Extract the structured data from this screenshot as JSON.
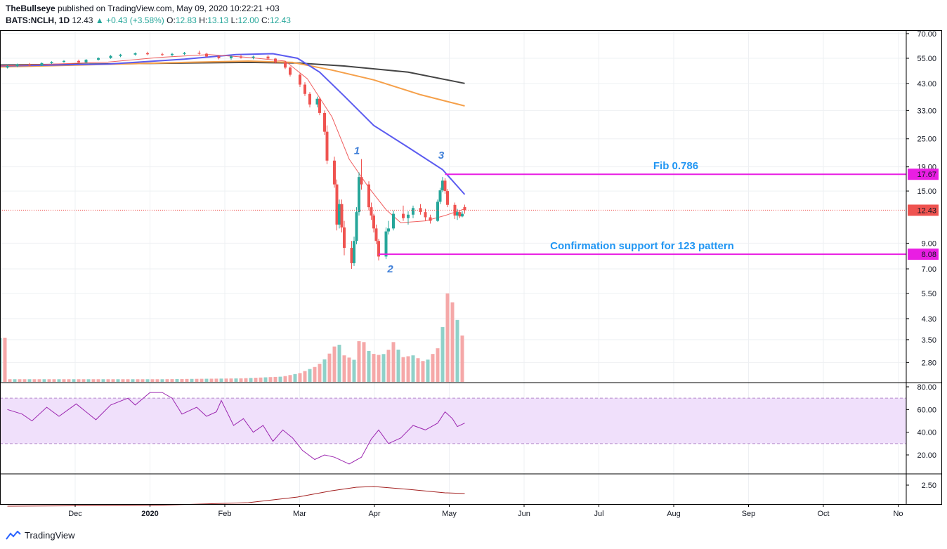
{
  "header": {
    "author": "TheBullseye",
    "published": "published on TradingView.com, May 09, 2020 10:22:21 +03",
    "symbol": "BATS:NCLH, 1D",
    "last": "12.43",
    "change": "+0.43 (+3.58%)",
    "o_label": "O:",
    "o": "12.83",
    "h_label": "H:",
    "h": "13.13",
    "l_label": "L:",
    "l": "12.00",
    "c_label": "C:",
    "c": "12.43"
  },
  "footer": {
    "brand": "TradingView",
    "logo_icon": "tradingview-logo-icon"
  },
  "chart_data": {
    "type": "candlestick",
    "price_scale": "log",
    "x_ticks": [
      "Dec",
      "2020",
      "Feb",
      "Mar",
      "Apr",
      "May",
      "Jun",
      "Jul",
      "Aug",
      "Sep",
      "Oct",
      "No"
    ],
    "price_ticks": [
      "70.00",
      "55.00",
      "43.00",
      "33.00",
      "25.00",
      "19.00",
      "15.00",
      "12.43",
      "9.00",
      "7.00",
      "5.50",
      "4.30",
      "3.50",
      "2.80"
    ],
    "rsi_ticks": [
      "80.00",
      "60.00",
      "40.00",
      "20.00"
    ],
    "rsi_band": [
      30,
      70
    ],
    "third_ticks": [
      "2.50"
    ],
    "last_price": 12.43,
    "price_labels": [
      {
        "text": "17.67",
        "value": 17.67,
        "color": "#e91ee3"
      },
      {
        "text": "12.43",
        "value": 12.43,
        "color": "#ef5350"
      },
      {
        "text": "8.08",
        "value": 8.08,
        "color": "#e91ee3"
      }
    ],
    "hlines": [
      {
        "value": 17.67,
        "from_date": "2020-04-30",
        "color": "#e91ee3",
        "label": "Fib 0.786"
      },
      {
        "value": 8.08,
        "from_date": "2020-04-03",
        "color": "#e91ee3",
        "label": "Confirmation support for 123 pattern"
      }
    ],
    "pattern_points": [
      {
        "label": "1",
        "date": "2020-03-26",
        "value": 20.5
      },
      {
        "label": "2",
        "date": "2020-04-06",
        "value": 7.6
      },
      {
        "label": "3",
        "date": "2020-04-29",
        "value": 19.6
      }
    ],
    "colors": {
      "up": "#26a69a",
      "down": "#ef5350",
      "ma_fast": "#f06060",
      "ma_mid": "#5b5bf0",
      "ma_slow": "#f5a04a",
      "ma_long": "#444444",
      "rsi": "#9c27b0",
      "rsi_band": "#f0e0fb",
      "third": "#a32020",
      "hline": "#e91ee3",
      "annotation": "#2196f3"
    },
    "moving_averages": [
      {
        "key": "ma_long",
        "points": [
          [
            "2019-11-01",
            51.5
          ],
          [
            "2020-01-15",
            52.5
          ],
          [
            "2020-02-10",
            52.8
          ],
          [
            "2020-03-01",
            52.5
          ],
          [
            "2020-03-20",
            51.0
          ],
          [
            "2020-04-15",
            48.0
          ],
          [
            "2020-05-08",
            43.0
          ]
        ]
      },
      {
        "key": "ma_slow",
        "points": [
          [
            "2019-11-01",
            50.5
          ],
          [
            "2020-01-15",
            52.8
          ],
          [
            "2020-02-10",
            53.5
          ],
          [
            "2020-02-28",
            52.8
          ],
          [
            "2020-03-15",
            49.0
          ],
          [
            "2020-04-01",
            44.5
          ],
          [
            "2020-04-20",
            38.5
          ],
          [
            "2020-05-08",
            34.5
          ]
        ]
      },
      {
        "key": "ma_mid",
        "points": [
          [
            "2019-11-01",
            51.0
          ],
          [
            "2019-12-15",
            52.0
          ],
          [
            "2020-01-15",
            54.5
          ],
          [
            "2020-02-05",
            57.0
          ],
          [
            "2020-02-20",
            57.5
          ],
          [
            "2020-03-01",
            55.0
          ],
          [
            "2020-03-10",
            48.0
          ],
          [
            "2020-03-20",
            38.0
          ],
          [
            "2020-04-01",
            28.5
          ],
          [
            "2020-04-15",
            23.0
          ],
          [
            "2020-04-29",
            18.5
          ],
          [
            "2020-05-08",
            14.5
          ]
        ]
      },
      {
        "key": "ma_fast",
        "points": [
          [
            "2019-11-01",
            51.0
          ],
          [
            "2019-12-15",
            53.0
          ],
          [
            "2020-01-05",
            55.5
          ],
          [
            "2020-01-25",
            57.0
          ],
          [
            "2020-02-10",
            55.5
          ],
          [
            "2020-02-25",
            53.5
          ],
          [
            "2020-03-05",
            45.0
          ],
          [
            "2020-03-15",
            31.0
          ],
          [
            "2020-03-22",
            20.5
          ],
          [
            "2020-03-30",
            15.5
          ],
          [
            "2020-04-06",
            12.5
          ],
          [
            "2020-04-12",
            11.0
          ],
          [
            "2020-04-22",
            11.2
          ],
          [
            "2020-04-30",
            11.8
          ],
          [
            "2020-05-08",
            12.6
          ]
        ]
      }
    ],
    "candles": [
      [
        "2019-11-04",
        50.2,
        51.5,
        49.8,
        51.0
      ],
      [
        "2019-11-08",
        51.0,
        52.2,
        50.4,
        51.8
      ],
      [
        "2019-11-13",
        51.8,
        52.5,
        50.9,
        51.2
      ],
      [
        "2019-11-18",
        51.2,
        52.8,
        51.0,
        52.5
      ],
      [
        "2019-11-22",
        52.5,
        53.4,
        52.0,
        53.1
      ],
      [
        "2019-11-27",
        53.1,
        54.0,
        52.6,
        53.6
      ],
      [
        "2019-12-03",
        53.6,
        54.3,
        52.4,
        52.8
      ],
      [
        "2019-12-06",
        52.8,
        54.6,
        52.5,
        54.2
      ],
      [
        "2019-12-11",
        54.2,
        55.5,
        53.8,
        55.1
      ],
      [
        "2019-12-16",
        55.1,
        56.8,
        54.7,
        56.3
      ],
      [
        "2019-12-20",
        56.3,
        57.4,
        55.6,
        57.0
      ],
      [
        "2019-12-26",
        57.0,
        58.2,
        56.5,
        57.8
      ],
      [
        "2019-12-31",
        57.8,
        58.6,
        56.7,
        57.2
      ],
      [
        "2020-01-06",
        57.2,
        58.1,
        56.3,
        56.8
      ],
      [
        "2020-01-10",
        56.8,
        58.0,
        56.0,
        57.4
      ],
      [
        "2020-01-15",
        57.4,
        58.5,
        56.8,
        58.0
      ],
      [
        "2020-01-21",
        58.0,
        59.2,
        57.0,
        57.5
      ],
      [
        "2020-01-24",
        57.5,
        58.0,
        55.5,
        56.0
      ],
      [
        "2020-01-29",
        56.0,
        56.8,
        54.4,
        55.0
      ],
      [
        "2020-02-03",
        55.0,
        56.5,
        54.2,
        56.0
      ],
      [
        "2020-02-07",
        56.0,
        57.0,
        54.8,
        55.3
      ],
      [
        "2020-02-12",
        55.3,
        56.4,
        54.5,
        55.9
      ],
      [
        "2020-02-18",
        55.9,
        56.7,
        54.3,
        54.8
      ],
      [
        "2020-02-21",
        54.8,
        55.2,
        52.2,
        52.8
      ],
      [
        "2020-02-25",
        52.8,
        53.5,
        49.5,
        50.2
      ],
      [
        "2020-02-27",
        50.2,
        50.8,
        46.0,
        46.8
      ],
      [
        "2020-03-02",
        46.8,
        47.5,
        41.5,
        42.5
      ],
      [
        "2020-03-04",
        42.5,
        43.5,
        38.0,
        38.8
      ],
      [
        "2020-03-06",
        38.8,
        39.5,
        34.0,
        35.0
      ],
      [
        "2020-03-09",
        35.0,
        37.8,
        34.0,
        37.0
      ],
      [
        "2020-03-10",
        37.0,
        37.6,
        31.5,
        32.2
      ],
      [
        "2020-03-12",
        32.2,
        33.0,
        26.0,
        26.8
      ],
      [
        "2020-03-13",
        26.8,
        28.5,
        19.5,
        20.2
      ],
      [
        "2020-03-16",
        20.2,
        21.0,
        15.5,
        16.0
      ],
      [
        "2020-03-17",
        16.0,
        16.8,
        10.2,
        10.8
      ],
      [
        "2020-03-18",
        10.8,
        13.8,
        10.4,
        13.2
      ],
      [
        "2020-03-19",
        13.2,
        13.8,
        10.0,
        10.5
      ],
      [
        "2020-03-20",
        10.5,
        11.2,
        8.0,
        8.6
      ],
      [
        "2020-03-23",
        8.6,
        9.2,
        7.0,
        7.4
      ],
      [
        "2020-03-24",
        7.4,
        9.6,
        7.2,
        9.2
      ],
      [
        "2020-03-25",
        9.2,
        12.8,
        8.9,
        12.2
      ],
      [
        "2020-03-26",
        12.2,
        18.0,
        11.8,
        17.2
      ],
      [
        "2020-03-27",
        17.2,
        20.5,
        15.2,
        16.0
      ],
      [
        "2020-03-30",
        16.0,
        16.5,
        12.4,
        12.8
      ],
      [
        "2020-03-31",
        12.8,
        13.4,
        11.3,
        11.8
      ],
      [
        "2020-04-01",
        11.8,
        12.0,
        10.0,
        10.4
      ],
      [
        "2020-04-02",
        10.4,
        10.8,
        8.9,
        9.2
      ],
      [
        "2020-04-03",
        9.2,
        9.4,
        7.6,
        7.9
      ],
      [
        "2020-04-06",
        7.9,
        10.5,
        7.7,
        10.1
      ],
      [
        "2020-04-07",
        10.1,
        11.2,
        9.8,
        10.4
      ],
      [
        "2020-04-09",
        10.4,
        12.4,
        10.2,
        12.0
      ],
      [
        "2020-04-13",
        12.0,
        13.0,
        11.2,
        11.5
      ],
      [
        "2020-04-15",
        11.5,
        12.3,
        10.8,
        11.9
      ],
      [
        "2020-04-17",
        11.9,
        13.0,
        11.5,
        12.7
      ],
      [
        "2020-04-20",
        12.7,
        13.2,
        11.9,
        12.2
      ],
      [
        "2020-04-22",
        12.2,
        12.6,
        11.2,
        11.6
      ],
      [
        "2020-04-24",
        11.6,
        11.9,
        10.9,
        11.2
      ],
      [
        "2020-04-27",
        11.2,
        13.8,
        11.1,
        13.5
      ],
      [
        "2020-04-28",
        13.5,
        15.5,
        13.2,
        15.1
      ],
      [
        "2020-04-29",
        15.1,
        17.2,
        14.8,
        16.6
      ],
      [
        "2020-04-30",
        16.6,
        17.0,
        14.6,
        15.0
      ],
      [
        "2020-05-01",
        15.0,
        15.3,
        12.8,
        13.1
      ],
      [
        "2020-05-04",
        13.1,
        13.4,
        11.4,
        11.8
      ],
      [
        "2020-05-05",
        11.8,
        12.6,
        11.3,
        12.2
      ],
      [
        "2020-05-06",
        12.2,
        12.4,
        11.5,
        11.7
      ],
      [
        "2020-05-07",
        11.7,
        12.3,
        11.6,
        12.0
      ],
      [
        "2020-05-08",
        12.83,
        13.13,
        12.0,
        12.43
      ]
    ],
    "volume_points": [
      [
        "2019-11-04",
        0.03
      ],
      [
        "2020-01-06",
        0.03
      ],
      [
        "2020-02-07",
        0.04
      ],
      [
        "2020-02-24",
        0.06
      ],
      [
        "2020-03-02",
        0.1
      ],
      [
        "2020-03-09",
        0.18
      ],
      [
        "2020-03-13",
        0.28
      ],
      [
        "2020-03-16",
        0.4
      ],
      [
        "2020-03-17",
        0.48
      ],
      [
        "2020-03-20",
        0.3
      ],
      [
        "2020-03-24",
        0.25
      ],
      [
        "2020-03-26",
        0.46
      ],
      [
        "2020-03-27",
        0.5
      ],
      [
        "2020-03-30",
        0.35
      ],
      [
        "2020-04-02",
        0.3
      ],
      [
        "2020-04-06",
        0.32
      ],
      [
        "2020-04-09",
        0.45
      ],
      [
        "2020-04-13",
        0.28
      ],
      [
        "2020-04-17",
        0.3
      ],
      [
        "2020-04-22",
        0.22
      ],
      [
        "2020-04-27",
        0.38
      ],
      [
        "2020-04-29",
        0.62
      ],
      [
        "2020-04-30",
        0.68
      ],
      [
        "2020-05-01",
        1.0
      ],
      [
        "2020-05-04",
        0.85
      ],
      [
        "2020-05-06",
        0.55
      ],
      [
        "2020-05-08",
        0.5
      ]
    ],
    "rsi_points": [
      [
        "2019-11-04",
        60
      ],
      [
        "2019-11-10",
        56
      ],
      [
        "2019-11-14",
        50
      ],
      [
        "2019-11-20",
        62
      ],
      [
        "2019-11-25",
        54
      ],
      [
        "2019-12-02",
        65
      ],
      [
        "2019-12-06",
        58
      ],
      [
        "2019-12-10",
        51
      ],
      [
        "2019-12-16",
        64
      ],
      [
        "2019-12-23",
        70
      ],
      [
        "2019-12-26",
        64
      ],
      [
        "2020-01-01",
        75
      ],
      [
        "2020-01-06",
        75
      ],
      [
        "2020-01-10",
        70
      ],
      [
        "2020-01-14",
        56
      ],
      [
        "2020-01-20",
        62
      ],
      [
        "2020-01-24",
        54
      ],
      [
        "2020-01-28",
        58
      ],
      [
        "2020-01-30",
        68
      ],
      [
        "2020-02-04",
        46
      ],
      [
        "2020-02-08",
        52
      ],
      [
        "2020-02-12",
        40
      ],
      [
        "2020-02-16",
        46
      ],
      [
        "2020-02-20",
        32
      ],
      [
        "2020-02-24",
        42
      ],
      [
        "2020-02-28",
        35
      ],
      [
        "2020-03-03",
        24
      ],
      [
        "2020-03-08",
        16
      ],
      [
        "2020-03-12",
        20
      ],
      [
        "2020-03-16",
        18
      ],
      [
        "2020-03-22",
        12
      ],
      [
        "2020-03-27",
        18
      ],
      [
        "2020-03-31",
        34
      ],
      [
        "2020-04-03",
        42
      ],
      [
        "2020-04-07",
        30
      ],
      [
        "2020-04-12",
        35
      ],
      [
        "2020-04-17",
        46
      ],
      [
        "2020-04-22",
        42
      ],
      [
        "2020-04-27",
        48
      ],
      [
        "2020-04-30",
        58
      ],
      [
        "2020-05-03",
        52
      ],
      [
        "2020-05-05",
        45
      ],
      [
        "2020-05-08",
        48
      ]
    ],
    "third_points": [
      [
        "2019-11-04",
        1.0
      ],
      [
        "2020-01-01",
        1.05
      ],
      [
        "2020-02-10",
        1.25
      ],
      [
        "2020-03-01",
        1.65
      ],
      [
        "2020-03-15",
        2.1
      ],
      [
        "2020-03-25",
        2.35
      ],
      [
        "2020-04-01",
        2.4
      ],
      [
        "2020-04-15",
        2.2
      ],
      [
        "2020-04-30",
        1.95
      ],
      [
        "2020-05-08",
        1.9
      ]
    ]
  }
}
